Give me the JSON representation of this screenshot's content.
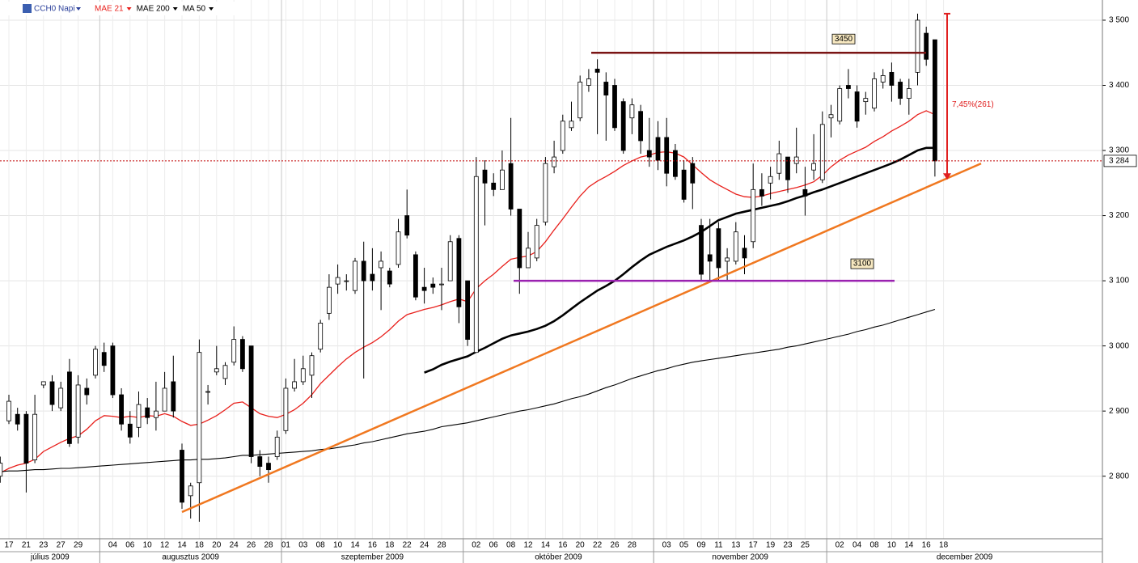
{
  "chart_data": {
    "type": "candlestick",
    "title": "CCH0 Napi",
    "categories": [
      null,
      "17",
      null,
      "21",
      null,
      "23",
      null,
      "27",
      null,
      "29",
      null,
      null,
      null,
      "04",
      null,
      "06",
      null,
      "10",
      null,
      "12",
      null,
      "14",
      null,
      "18",
      null,
      "20",
      null,
      "24",
      null,
      "26",
      null,
      "28",
      null,
      "01",
      null,
      "03",
      null,
      "08",
      null,
      "10",
      null,
      "14",
      null,
      "16",
      null,
      "18",
      null,
      "22",
      null,
      "24",
      null,
      "28",
      null,
      null,
      null,
      "02",
      null,
      "06",
      null,
      "08",
      null,
      "12",
      null,
      "14",
      null,
      "16",
      null,
      "20",
      null,
      "22",
      null,
      "26",
      null,
      "28",
      null,
      null,
      null,
      "03",
      null,
      "05",
      null,
      "09",
      null,
      "11",
      null,
      "13",
      null,
      "17",
      null,
      "19",
      null,
      "23",
      null,
      "25",
      null,
      null,
      null,
      "02",
      null,
      "04",
      null,
      "08",
      null,
      "10",
      null,
      "14",
      null,
      "16",
      null,
      "18"
    ],
    "months": [
      "július 2009",
      "augusztus 2009",
      "szeptember 2009",
      "október 2009",
      "november 2009",
      "december 2009"
    ],
    "open": [
      2800,
      2885,
      2895,
      2895,
      2825,
      2940,
      2945,
      2905,
      2960,
      2860,
      2935,
      2955,
      2990,
      3000,
      2925,
      2880,
      2875,
      2905,
      2890,
      2900,
      2945,
      2840,
      2770,
      2790,
      2930,
      2960,
      2950,
      2975,
      3010,
      3000,
      2830,
      2820,
      2830,
      2870,
      2935,
      2945,
      2955,
      2995,
      3050,
      3095,
      3100,
      3085,
      3130,
      3110,
      3120,
      3115,
      3125,
      3200,
      3140,
      3090,
      3095,
      3095,
      3100,
      3165,
      3100,
      2990,
      3270,
      3250,
      3240,
      3280,
      3210,
      3120,
      3135,
      3190,
      3275,
      3300,
      3335,
      3350,
      3400,
      3425,
      3405,
      3400,
      3375,
      3350,
      3360,
      3300,
      3320,
      3320,
      3300,
      3270,
      3280,
      3185,
      3140,
      3180,
      3130,
      3130,
      3150,
      3160,
      3240,
      3250,
      3265,
      3290,
      3280,
      3240,
      3270,
      3255,
      3350,
      3345,
      3400,
      3390,
      3375,
      3365,
      3405,
      3420,
      3405,
      3380,
      3420,
      3480,
      3470,
      null
    ],
    "high": [
      2830,
      2925,
      2905,
      2900,
      2925,
      2945,
      2955,
      2945,
      2980,
      2955,
      2950,
      3000,
      3005,
      3005,
      2935,
      2900,
      2930,
      2920,
      2945,
      2960,
      2985,
      2850,
      2790,
      3010,
      2940,
      3000,
      2975,
      3030,
      3015,
      3000,
      2840,
      2830,
      2870,
      2950,
      2980,
      2985,
      2990,
      3040,
      3110,
      3125,
      3110,
      3135,
      3160,
      3150,
      3145,
      3120,
      3195,
      3240,
      3145,
      3120,
      3105,
      3120,
      3170,
      3170,
      3100,
      3290,
      3285,
      3265,
      3300,
      3350,
      3210,
      3175,
      3195,
      3290,
      3315,
      3355,
      3375,
      3415,
      3425,
      3440,
      3420,
      3410,
      3380,
      3380,
      3370,
      3350,
      3345,
      3350,
      3310,
      3285,
      3290,
      3195,
      3195,
      3190,
      3150,
      3190,
      3170,
      3280,
      3265,
      3275,
      3315,
      3290,
      3335,
      3275,
      3325,
      3360,
      3370,
      3400,
      3425,
      3400,
      3390,
      3420,
      3425,
      3435,
      3410,
      3410,
      3510,
      3490,
      3470,
      null
    ],
    "low": [
      2790,
      2880,
      2870,
      2775,
      2820,
      2935,
      2900,
      2900,
      2845,
      2850,
      2910,
      2950,
      2960,
      2920,
      2870,
      2850,
      2860,
      2880,
      2870,
      2900,
      2890,
      2750,
      2735,
      2730,
      2910,
      2955,
      2940,
      2970,
      2960,
      2820,
      2800,
      2790,
      2825,
      2865,
      2930,
      2940,
      2920,
      2990,
      3040,
      3080,
      3085,
      3080,
      2950,
      3085,
      3055,
      3090,
      3120,
      3165,
      3070,
      3065,
      3080,
      3055,
      3100,
      3035,
      3000,
      2990,
      3185,
      3230,
      3240,
      3200,
      3080,
      3120,
      3130,
      3185,
      3265,
      3295,
      3330,
      3345,
      3390,
      3325,
      3315,
      3330,
      3295,
      3325,
      3295,
      3275,
      3270,
      3245,
      3255,
      3220,
      3210,
      3100,
      3100,
      3100,
      3100,
      3125,
      3110,
      3150,
      3215,
      3225,
      3255,
      3235,
      3265,
      3200,
      3255,
      3250,
      3320,
      3340,
      3380,
      3335,
      3355,
      3360,
      3395,
      3375,
      3370,
      3355,
      3400,
      3430,
      3260,
      null
    ],
    "close": [
      2820,
      2915,
      2880,
      2820,
      2895,
      2945,
      2910,
      2935,
      2850,
      2940,
      2925,
      2995,
      2970,
      2925,
      2880,
      2860,
      2910,
      2890,
      2900,
      2935,
      2900,
      2760,
      2785,
      2990,
      2930,
      2965,
      2970,
      3010,
      2965,
      2830,
      2815,
      2810,
      2860,
      2935,
      2945,
      2965,
      2985,
      3035,
      3090,
      3105,
      3100,
      3130,
      3100,
      3100,
      3130,
      3095,
      3175,
      3170,
      3075,
      3085,
      3090,
      3095,
      3160,
      3060,
      3010,
      3260,
      3250,
      3240,
      3270,
      3210,
      3120,
      3150,
      3185,
      3280,
      3290,
      3345,
      3345,
      3405,
      3410,
      3420,
      3385,
      3335,
      3300,
      3370,
      3315,
      3290,
      3285,
      3265,
      3260,
      3225,
      3250,
      3110,
      3130,
      3120,
      3135,
      3175,
      3135,
      3240,
      3230,
      3260,
      3295,
      3255,
      3290,
      3230,
      3280,
      3340,
      3355,
      3395,
      3395,
      3345,
      3380,
      3410,
      3415,
      3400,
      3380,
      3395,
      3500,
      3440,
      3284,
      null
    ],
    "up_color": "#ffffff",
    "down_color": "#000000",
    "series": [
      {
        "name": "MAE 21",
        "color": "#e8201c",
        "values": [
          2805,
          2812,
          2817,
          2820,
          2826,
          2838,
          2845,
          2852,
          2858,
          2862,
          2872,
          2885,
          2893,
          2892,
          2890,
          2892,
          2890,
          2893,
          2892,
          2896,
          2892,
          2884,
          2878,
          2880,
          2886,
          2893,
          2902,
          2912,
          2914,
          2905,
          2896,
          2892,
          2890,
          2895,
          2902,
          2912,
          2925,
          2942,
          2955,
          2968,
          2980,
          2990,
          2998,
          3005,
          3014,
          3025,
          3038,
          3048,
          3052,
          3056,
          3059,
          3063,
          3068,
          3072,
          3068,
          3088,
          3100,
          3110,
          3122,
          3133,
          3136,
          3138,
          3145,
          3160,
          3178,
          3195,
          3213,
          3230,
          3244,
          3253,
          3260,
          3268,
          3277,
          3284,
          3290,
          3293,
          3297,
          3298,
          3296,
          3290,
          3278,
          3266,
          3255,
          3247,
          3240,
          3233,
          3229,
          3228,
          3230,
          3234,
          3237,
          3240,
          3243,
          3247,
          3252,
          3262,
          3275,
          3285,
          3293,
          3299,
          3305,
          3314,
          3321,
          3330,
          3337,
          3345,
          3355,
          3361,
          3355,
          null
        ]
      },
      {
        "name": "MAE 200",
        "color": "#000000",
        "values": [
          2807,
          2808,
          2808,
          2809,
          2810,
          2810,
          2811,
          2812,
          2812,
          2813,
          2814,
          2815,
          2816,
          2817,
          2818,
          2819,
          2820,
          2821,
          2822,
          2823,
          2824,
          2825,
          2825,
          2826,
          2826,
          2827,
          2828,
          2830,
          2832,
          2832,
          2833,
          2834,
          2835,
          2836,
          2837,
          2838,
          2839,
          2841,
          2842,
          2844,
          2846,
          2848,
          2851,
          2853,
          2856,
          2859,
          2862,
          2865,
          2867,
          2869,
          2872,
          2876,
          2878,
          2880,
          2882,
          2885,
          2888,
          2891,
          2894,
          2897,
          2900,
          2902,
          2905,
          2908,
          2911,
          2915,
          2919,
          2922,
          2926,
          2931,
          2936,
          2940,
          2945,
          2950,
          2954,
          2958,
          2962,
          2965,
          2969,
          2972,
          2975,
          2977,
          2979,
          2981,
          2983,
          2985,
          2987,
          2989,
          2991,
          2993,
          2995,
          2998,
          3000,
          3003,
          3006,
          3009,
          3012,
          3015,
          3018,
          3022,
          3025,
          3029,
          3032,
          3036,
          3040,
          3044,
          3048,
          3052,
          3056,
          null
        ]
      },
      {
        "name": "MA 50",
        "color": "#000000",
        "values": [
          null,
          null,
          null,
          null,
          null,
          null,
          null,
          null,
          null,
          null,
          null,
          null,
          null,
          null,
          null,
          null,
          null,
          null,
          null,
          null,
          null,
          null,
          null,
          null,
          null,
          null,
          null,
          null,
          null,
          null,
          null,
          null,
          null,
          null,
          null,
          null,
          null,
          null,
          null,
          null,
          null,
          null,
          null,
          null,
          null,
          null,
          null,
          null,
          null,
          2959,
          2964,
          2971,
          2976,
          2980,
          2984,
          2991,
          2997,
          3004,
          3011,
          3016,
          3019,
          3022,
          3026,
          3031,
          3038,
          3047,
          3057,
          3067,
          3076,
          3085,
          3092,
          3100,
          3110,
          3121,
          3131,
          3140,
          3146,
          3152,
          3157,
          3162,
          3168,
          3175,
          3184,
          3193,
          3198,
          3203,
          3206,
          3209,
          3212,
          3215,
          3218,
          3222,
          3227,
          3231,
          3236,
          3240,
          3245,
          3250,
          3255,
          3260,
          3265,
          3270,
          3275,
          3280,
          3286,
          3293,
          3300,
          3304,
          3304,
          null
        ]
      }
    ],
    "ylim": [
      2704,
      3531
    ],
    "yticks": [
      {
        "value": 2800,
        "label": "2 800"
      },
      {
        "value": 2900,
        "label": "2 900"
      },
      {
        "value": 3000,
        "label": "3 000"
      },
      {
        "value": 3100,
        "label": "3 100"
      },
      {
        "value": 3200,
        "label": "3 200"
      },
      {
        "value": 3300,
        "label": "3 300"
      },
      {
        "value": 3400,
        "label": "3 400"
      },
      {
        "value": 3500,
        "label": "3 500"
      }
    ],
    "grid": true,
    "levels": [
      {
        "value": 3450,
        "color": "#7a1414"
      },
      {
        "value": 3100,
        "color": "#9a22b0"
      }
    ],
    "trendline": {
      "values": [
        2745,
        3280
      ],
      "color": "#f07820"
    },
    "arrow": {
      "values": [
        3510,
        3255
      ],
      "label": "7,45%(261)",
      "color": "#e02020"
    },
    "last_price": {
      "value": 3284,
      "label": "3 284",
      "color": "#c00000"
    }
  }
}
